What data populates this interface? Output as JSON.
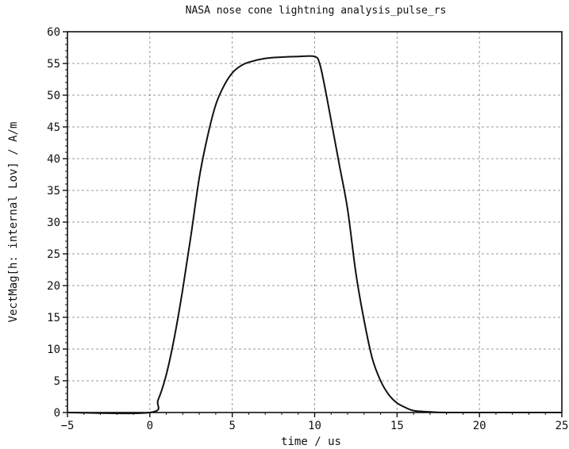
{
  "chart_data": {
    "type": "line",
    "title": "NASA nose cone lightning analysis_pulse_rs",
    "xlabel": "time / us",
    "ylabel": "VectMag[h: internal Lov] / A/m",
    "xlim": [
      -5,
      25
    ],
    "ylim": [
      0,
      60
    ],
    "xticks": [
      -5,
      0,
      5,
      10,
      15,
      20,
      25
    ],
    "yticks": [
      0,
      5,
      10,
      15,
      20,
      25,
      30,
      35,
      40,
      45,
      50,
      55,
      60
    ],
    "grid": true,
    "series": [
      {
        "color": "#111111",
        "x": [
          -5,
          0,
          0.5,
          1,
          1.5,
          2,
          2.5,
          3,
          3.5,
          4,
          4.5,
          5,
          5.5,
          6,
          7,
          8,
          9,
          10,
          10.3,
          10.6,
          11,
          11.5,
          12,
          12.5,
          13,
          13.5,
          14,
          14.5,
          15,
          15.5,
          16,
          17,
          18,
          20,
          25
        ],
        "y": [
          0,
          0,
          2,
          6,
          12,
          19.5,
          28,
          37,
          43.5,
          48.5,
          51.5,
          53.5,
          54.6,
          55.2,
          55.8,
          56,
          56.1,
          56.1,
          55,
          51.5,
          46,
          39,
          32,
          22,
          14.5,
          8.5,
          5,
          2.8,
          1.5,
          0.8,
          0.3,
          0.1,
          0,
          0,
          0
        ]
      }
    ]
  }
}
